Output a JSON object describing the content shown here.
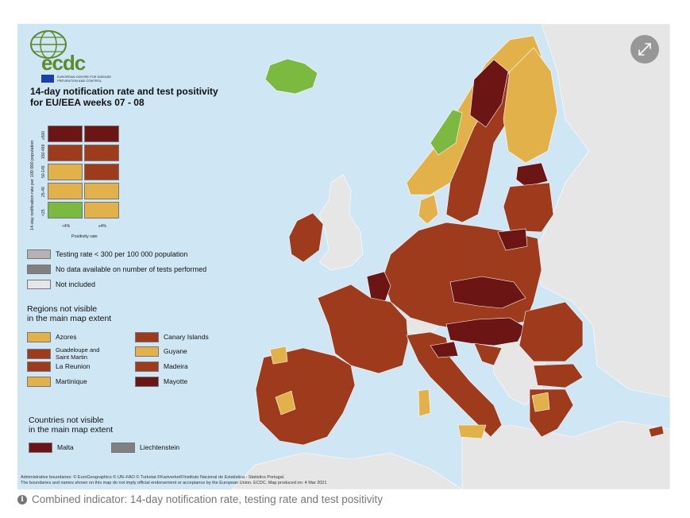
{
  "header": {
    "logo_text": "ecdc",
    "logo_sub": "EUROPEAN CENTRE FOR DISEASE PREVENTION AND CONTROL",
    "title_line1": "14-day notification rate and test positivity",
    "title_line2": "for EU/EEA weeks 07 - 08"
  },
  "matrix": {
    "y_axis_title": "14-day notification rate per 100 000 population",
    "y_ticks": [
      "≥500",
      "150-499",
      "50-149",
      "25-49",
      "<25"
    ],
    "x_ticks": [
      "<4%",
      "≥4%"
    ],
    "x_title": "Positivity rate",
    "cells": [
      [
        "#6b1515",
        "#6b1515"
      ],
      [
        "#9e3b1d",
        "#9e3b1d"
      ],
      [
        "#e3b14a",
        "#9e3b1d"
      ],
      [
        "#e3b14a",
        "#e3b14a"
      ],
      [
        "#7cb941",
        "#e3b14a"
      ]
    ]
  },
  "legend": {
    "items": [
      {
        "label": "Testing rate < 300 per 100 000 population",
        "color": "#b3b3b3"
      },
      {
        "label": "No data available on number of tests performed",
        "color": "#808080"
      },
      {
        "label": "Not included",
        "color": "#e6e6e6"
      }
    ]
  },
  "regions": {
    "title_line1": "Regions not visible",
    "title_line2": "in the main map extent",
    "items": [
      {
        "label": "Azores",
        "color": "#e3b14a"
      },
      {
        "label": "Canary Islands",
        "color": "#9e3b1d"
      },
      {
        "label": "Guadeloupe and Saint Martin",
        "color": "#9e3b1d"
      },
      {
        "label": "Guyane",
        "color": "#e3b14a"
      },
      {
        "label": "La Reunion",
        "color": "#9e3b1d"
      },
      {
        "label": "Madeira",
        "color": "#9e3b1d"
      },
      {
        "label": "Martinique",
        "color": "#e3b14a"
      },
      {
        "label": "Mayotte",
        "color": "#6b1515"
      }
    ]
  },
  "countries": {
    "title_line1": "Countries not visible",
    "title_line2": "in the main map extent",
    "items": [
      {
        "label": "Malta",
        "color": "#6b1515"
      },
      {
        "label": "Liechtenstein",
        "color": "#808080"
      }
    ]
  },
  "footnote": {
    "line1": "Administrative boundaries: © EuroGeographics © UN–FAO © Turkstat.©Kartverket©Instituto Nacional de Estatística - Statistics Portugal.",
    "line2": "The boundaries and names shown on this map do not imply official endorsement or acceptance by the European Union. ECDC. Map produced on: 4 Mar 2021"
  },
  "caption": "Combined indicator: 14-day notification rate, testing rate and test positivity",
  "colors": {
    "dark_red": "#6b1515",
    "red_brown": "#9e3b1d",
    "yellow": "#e3b14a",
    "green": "#7cb941",
    "grey_light": "#e6e6e6",
    "sea": "#cfe7f4"
  }
}
